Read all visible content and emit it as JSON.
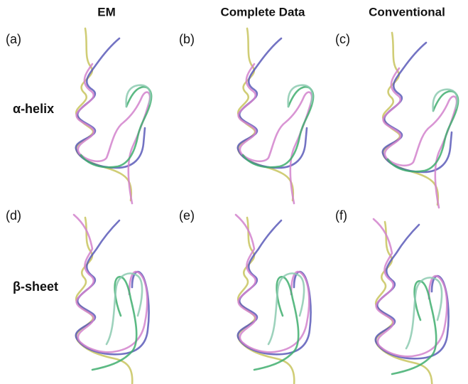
{
  "columns": [
    "EM",
    "Complete Data",
    "Conventional"
  ],
  "rows": [
    "α-helix",
    "β-sheet"
  ],
  "panels": [
    "(a)",
    "(b)",
    "(c)",
    "(d)",
    "(e)",
    "(f)"
  ]
}
